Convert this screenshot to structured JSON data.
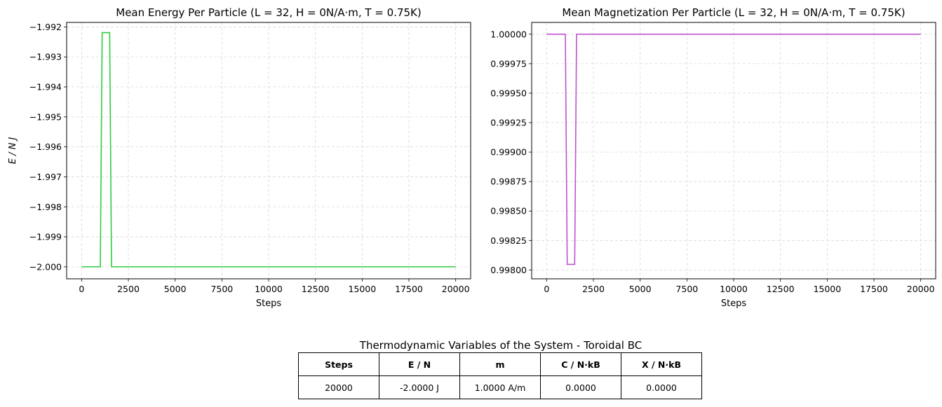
{
  "chart_data": [
    {
      "type": "line",
      "title": "Mean Energy Per Particle (L = 32, H = 0N/A·m, T = 0.75K)",
      "xlabel": "Steps",
      "ylabel": "E / N J",
      "xlim": [
        -800,
        20800
      ],
      "ylim": [
        -2.0004,
        -1.99185
      ],
      "x_ticks": [
        0,
        2500,
        5000,
        7500,
        10000,
        12500,
        15000,
        17500,
        20000
      ],
      "x_tick_labels": [
        "0",
        "2500",
        "5000",
        "7500",
        "10000",
        "12500",
        "15000",
        "17500",
        "20000"
      ],
      "y_ticks": [
        -2.0,
        -1.999,
        -1.998,
        -1.997,
        -1.996,
        -1.995,
        -1.994,
        -1.993,
        -1.992
      ],
      "y_tick_labels": [
        "−2.000",
        "−1.999",
        "−1.998",
        "−1.997",
        "−1.996",
        "−1.995",
        "−1.994",
        "−1.993",
        "−1.992"
      ],
      "grid": true,
      "color": "#2ecc40",
      "series": [
        {
          "x": [
            0,
            1000,
            1100,
            1500,
            1600,
            20000
          ],
          "y": [
            -2.0,
            -2.0,
            -1.99219,
            -1.99219,
            -2.0,
            -2.0
          ]
        }
      ]
    },
    {
      "type": "line",
      "title": "Mean Magnetization Per Particle (L = 32, H = 0N/A·m, T = 0.75K)",
      "xlabel": "Steps",
      "ylabel": "m",
      "xlim": [
        -800,
        20800
      ],
      "ylim": [
        0.997925,
        1.0001
      ],
      "x_ticks": [
        0,
        2500,
        5000,
        7500,
        10000,
        12500,
        15000,
        17500,
        20000
      ],
      "x_tick_labels": [
        "0",
        "2500",
        "5000",
        "7500",
        "10000",
        "12500",
        "15000",
        "17500",
        "20000"
      ],
      "y_ticks": [
        0.998,
        0.99825,
        0.9985,
        0.99875,
        0.999,
        0.99925,
        0.9995,
        0.99975,
        1.0
      ],
      "y_tick_labels": [
        "0.99800",
        "0.99825",
        "0.99850",
        "0.99875",
        "0.99900",
        "0.99925",
        "0.99950",
        "0.99975",
        "1.00000"
      ],
      "grid": true,
      "color": "#bb55cc",
      "series": [
        {
          "x": [
            0,
            1000,
            1100,
            1500,
            1600,
            20000
          ],
          "y": [
            1.0,
            1.0,
            0.998047,
            0.998047,
            1.0,
            1.0
          ]
        }
      ]
    }
  ],
  "table": {
    "title": "Thermodynamic Variables of the System - Toroidal BC",
    "headers": [
      "Steps",
      "E / N",
      "m",
      "C / N·kB",
      "X / N·kB"
    ],
    "row": [
      "20000",
      "-2.0000 J",
      "1.0000 A/m",
      "0.0000",
      "0.0000"
    ]
  }
}
